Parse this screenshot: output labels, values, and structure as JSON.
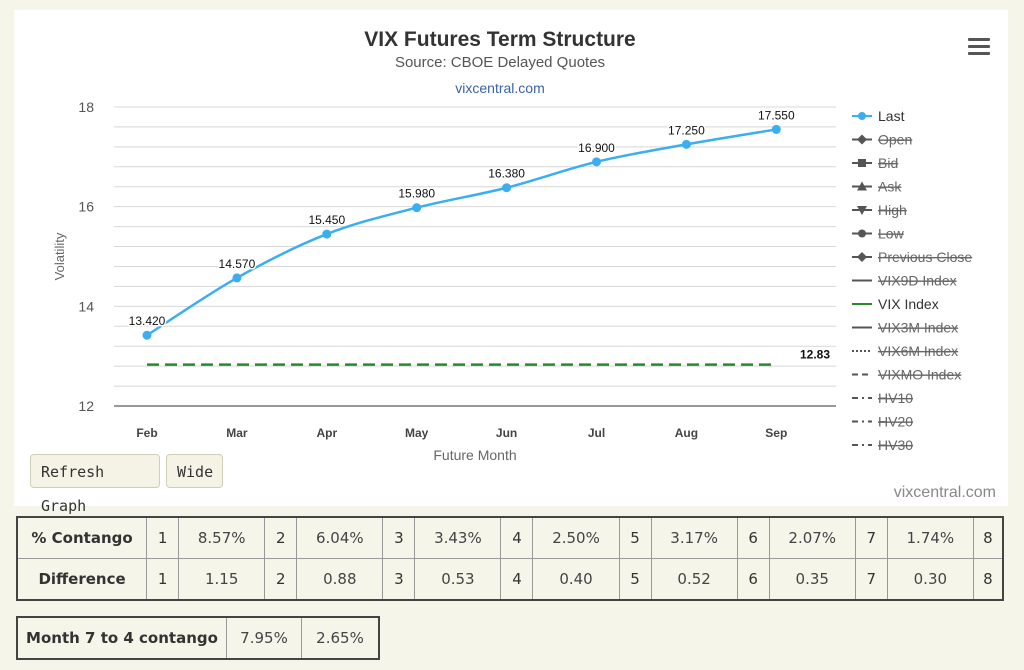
{
  "header": {
    "title": "VIX Futures Term Structure",
    "subtitle": "Source: CBOE Delayed Quotes",
    "credit_top": "vixcentral.com",
    "credit_bottom": "vixcentral.com"
  },
  "buttons": {
    "refresh": "Refresh Graph",
    "wide": "Wide"
  },
  "colors": {
    "last": "#3aaef0",
    "vix": "#2a8a2a",
    "grid": "#d8d8d8",
    "inactive": "#555555"
  },
  "chart_data": {
    "type": "line",
    "title": "VIX Futures Term Structure",
    "subtitle": "Source: CBOE Delayed Quotes",
    "xlabel": "Future Month",
    "ylabel": "Volatility",
    "categories": [
      "Feb",
      "Mar",
      "Apr",
      "May",
      "Jun",
      "Jul",
      "Aug",
      "Sep"
    ],
    "ylim": [
      12,
      18
    ],
    "yticks": [
      12,
      14,
      16,
      18
    ],
    "grid": true,
    "legend_position": "right",
    "series": [
      {
        "name": "Last",
        "values": [
          13.42,
          14.57,
          15.45,
          15.98,
          16.38,
          16.9,
          17.25,
          17.55
        ],
        "labels": [
          "13.420",
          "14.570",
          "15.450",
          "15.980",
          "16.380",
          "16.900",
          "17.250",
          "17.550"
        ],
        "color": "#3aaef0",
        "style": "solid-marker"
      }
    ],
    "reference_lines": [
      {
        "name": "VIX Index",
        "value": 12.83,
        "label": "12.83",
        "color": "#2a8a2a",
        "style": "dash"
      }
    ],
    "legend": [
      {
        "name": "Last",
        "active": true,
        "symbol": "circle",
        "line": "solid",
        "color": "#3aaef0"
      },
      {
        "name": "Open",
        "active": false,
        "symbol": "diamond",
        "line": "solid"
      },
      {
        "name": "Bid",
        "active": false,
        "symbol": "square",
        "line": "solid"
      },
      {
        "name": "Ask",
        "active": false,
        "symbol": "triangle",
        "line": "solid"
      },
      {
        "name": "High",
        "active": false,
        "symbol": "triangle-down",
        "line": "solid"
      },
      {
        "name": "Low",
        "active": false,
        "symbol": "circle",
        "line": "solid"
      },
      {
        "name": "Previous Close",
        "active": false,
        "symbol": "diamond",
        "line": "solid"
      },
      {
        "name": "VIX9D Index",
        "active": false,
        "symbol": "none",
        "line": "solid"
      },
      {
        "name": "VIX Index",
        "active": true,
        "symbol": "none",
        "line": "solid",
        "color": "#2a8a2a"
      },
      {
        "name": "VIX3M Index",
        "active": false,
        "symbol": "none",
        "line": "solid"
      },
      {
        "name": "VIX6M Index",
        "active": false,
        "symbol": "none",
        "line": "dot"
      },
      {
        "name": "VIXMO Index",
        "active": false,
        "symbol": "none",
        "line": "dash"
      },
      {
        "name": "HV10",
        "active": false,
        "symbol": "none",
        "line": "dashdot"
      },
      {
        "name": "HV20",
        "active": false,
        "symbol": "none",
        "line": "dashdot"
      },
      {
        "name": "HV30",
        "active": false,
        "symbol": "none",
        "line": "dashdot"
      }
    ]
  },
  "contango_table": {
    "rows": [
      {
        "label": "% Contango",
        "cells": [
          [
            "1",
            "8.57%"
          ],
          [
            "2",
            "6.04%"
          ],
          [
            "3",
            "3.43%"
          ],
          [
            "4",
            "2.50%"
          ],
          [
            "5",
            "3.17%"
          ],
          [
            "6",
            "2.07%"
          ],
          [
            "7",
            "1.74%"
          ]
        ],
        "last_index": "8"
      },
      {
        "label": "Difference",
        "cells": [
          [
            "1",
            "1.15"
          ],
          [
            "2",
            "0.88"
          ],
          [
            "3",
            "0.53"
          ],
          [
            "4",
            "0.40"
          ],
          [
            "5",
            "0.52"
          ],
          [
            "6",
            "0.35"
          ],
          [
            "7",
            "0.30"
          ]
        ],
        "last_index": "8"
      }
    ]
  },
  "month_table": {
    "label": "Month 7 to 4 contango",
    "values": [
      "7.95%",
      "2.65%"
    ]
  }
}
